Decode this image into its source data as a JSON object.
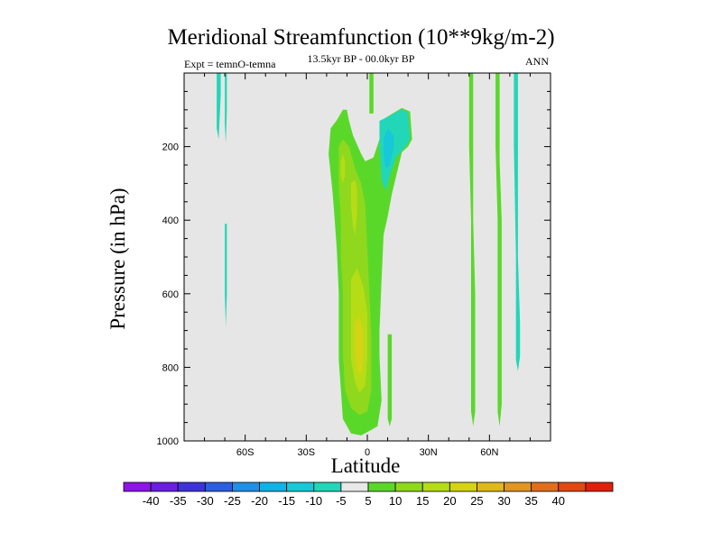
{
  "chart_data": {
    "type": "contour",
    "title": "Meridional Streamfunction (10**9kg/m-2)",
    "subtitle": "13.5kyr BP - 00.0kyr BP",
    "left_label": "Expt = temnO-temna",
    "right_label": "ANN",
    "xlabel": "Latitude",
    "ylabel": "Pressure (in hPa)",
    "xlim": [
      -90,
      90
    ],
    "ylim": [
      1000,
      0
    ],
    "x_ticks": [
      {
        "value": -60,
        "label": "60S"
      },
      {
        "value": -30,
        "label": "30S"
      },
      {
        "value": 0,
        "label": "0"
      },
      {
        "value": 30,
        "label": "30N"
      },
      {
        "value": 60,
        "label": "60N"
      }
    ],
    "y_ticks": [
      {
        "value": 200,
        "label": "200"
      },
      {
        "value": 400,
        "label": "400"
      },
      {
        "value": 600,
        "label": "600"
      },
      {
        "value": 800,
        "label": "800"
      },
      {
        "value": 1000,
        "label": "1000"
      }
    ],
    "levels": [
      -40,
      -35,
      -30,
      -25,
      -20,
      -15,
      -10,
      -5,
      5,
      10,
      15,
      20,
      25,
      30,
      35,
      40
    ],
    "level_labels": [
      "-40",
      "-35",
      "-30",
      "-25",
      "-20",
      "-15",
      "-10",
      "-5",
      "5",
      "10",
      "15",
      "20",
      "25",
      "30",
      "35",
      "40"
    ],
    "colors": [
      "#8d15e6",
      "#6a1ee0",
      "#3e33d9",
      "#2a5fe0",
      "#1f8fe8",
      "#10b3e6",
      "#16c8d8",
      "#22d6b8",
      "#e8e8e8",
      "#5ad82a",
      "#8fd81e",
      "#b6dc16",
      "#d4d414",
      "#e0b81a",
      "#e09620",
      "#e06e1c",
      "#e04a12",
      "#e0200c"
    ],
    "contour_regions": [
      {
        "class": "-5 to -10",
        "color": "#22d6b8",
        "points": [
          [
            -74,
            0
          ],
          [
            -72,
            0
          ],
          [
            -72,
            60
          ],
          [
            -73,
            180
          ],
          [
            -74,
            150
          ],
          [
            -74,
            60
          ]
        ]
      },
      {
        "class": "-5 to -10",
        "color": "#22d6b8",
        "points": [
          [
            -70,
            0
          ],
          [
            -69,
            0
          ],
          [
            -69,
            100
          ],
          [
            -69.5,
            190
          ],
          [
            -70,
            140
          ]
        ]
      },
      {
        "class": "-5 to -10",
        "color": "#22d6b8",
        "points": [
          [
            -70,
            410
          ],
          [
            -69,
            410
          ],
          [
            -69,
            600
          ],
          [
            -69.5,
            690
          ],
          [
            -70,
            600
          ]
        ]
      },
      {
        "class": "5 to 10",
        "color": "#5ad82a",
        "points": [
          [
            1,
            0
          ],
          [
            3,
            0
          ],
          [
            3,
            110
          ],
          [
            1,
            110
          ]
        ]
      },
      {
        "class": "5 to 10",
        "color": "#5ad82a",
        "points": [
          [
            -18,
            150
          ],
          [
            -15,
            128
          ],
          [
            -12,
            100
          ],
          [
            -10,
            100
          ],
          [
            -9,
            130
          ],
          [
            -7,
            170
          ],
          [
            -3,
            220
          ],
          [
            -1,
            240
          ],
          [
            3,
            230
          ],
          [
            6,
            180
          ],
          [
            7,
            130
          ],
          [
            10,
            118
          ],
          [
            17,
            95
          ],
          [
            21,
            105
          ],
          [
            22,
            180
          ],
          [
            20,
            200
          ],
          [
            17,
            215
          ],
          [
            12,
            330
          ],
          [
            10,
            390
          ],
          [
            8,
            440
          ],
          [
            7,
            560
          ],
          [
            6,
            700
          ],
          [
            6,
            770
          ],
          [
            7,
            890
          ],
          [
            5,
            960
          ],
          [
            2,
            970
          ],
          [
            -3,
            985
          ],
          [
            -8,
            980
          ],
          [
            -12,
            940
          ],
          [
            -13,
            860
          ],
          [
            -14,
            780
          ],
          [
            -14,
            600
          ],
          [
            -15,
            480
          ],
          [
            -16,
            400
          ],
          [
            -17,
            330
          ],
          [
            -19,
            220
          ]
        ]
      },
      {
        "class": "5 to 10",
        "color": "#5ad82a",
        "points": [
          [
            10,
            710
          ],
          [
            12,
            710
          ],
          [
            12,
            940
          ],
          [
            11,
            960
          ],
          [
            10,
            940
          ]
        ]
      },
      {
        "class": "5 to 10",
        "color": "#5ad82a",
        "points": [
          [
            50,
            0
          ],
          [
            52,
            0
          ],
          [
            52,
            400
          ],
          [
            53,
            600
          ],
          [
            53,
            800
          ],
          [
            53,
            920
          ],
          [
            52,
            960
          ],
          [
            51,
            920
          ],
          [
            51,
            700
          ],
          [
            51,
            400
          ],
          [
            50,
            200
          ]
        ]
      },
      {
        "class": "5 to 10",
        "color": "#5ad82a",
        "points": [
          [
            63,
            0
          ],
          [
            65,
            0
          ],
          [
            65,
            240
          ],
          [
            66,
            400
          ],
          [
            66,
            600
          ],
          [
            66,
            780
          ],
          [
            66,
            900
          ],
          [
            65,
            960
          ],
          [
            64,
            920
          ],
          [
            64,
            700
          ],
          [
            64,
            400
          ],
          [
            63,
            200
          ]
        ]
      },
      {
        "class": "-5 to -10",
        "color": "#22d6b8",
        "points": [
          [
            6,
            130
          ],
          [
            9,
            122
          ],
          [
            17,
            98
          ],
          [
            20,
            108
          ],
          [
            21,
            180
          ],
          [
            18,
            205
          ],
          [
            14,
            230
          ],
          [
            11,
            280
          ],
          [
            9,
            320
          ],
          [
            7,
            290
          ],
          [
            6,
            200
          ]
        ]
      },
      {
        "class": "-5 to -10",
        "color": "#22d6b8",
        "points": [
          [
            72,
            0
          ],
          [
            74,
            0
          ],
          [
            74,
            500
          ],
          [
            75,
            680
          ],
          [
            75,
            770
          ],
          [
            74,
            810
          ],
          [
            73,
            780
          ],
          [
            73,
            500
          ],
          [
            72,
            200
          ]
        ]
      },
      {
        "class": "-10 to -15",
        "color": "#16c8d8",
        "points": [
          [
            8,
            180
          ],
          [
            10,
            150
          ],
          [
            13,
            170
          ],
          [
            13,
            200
          ],
          [
            11,
            250
          ],
          [
            9,
            260
          ],
          [
            8,
            220
          ]
        ]
      },
      {
        "class": "10 to 15",
        "color": "#8fd81e",
        "points": [
          [
            -14,
            200
          ],
          [
            -12,
            180
          ],
          [
            -9,
            200
          ],
          [
            -6,
            260
          ],
          [
            -3,
            300
          ],
          [
            -1,
            360
          ],
          [
            0,
            480
          ],
          [
            1,
            600
          ],
          [
            2,
            720
          ],
          [
            2,
            860
          ],
          [
            0,
            920
          ],
          [
            -4,
            930
          ],
          [
            -8,
            910
          ],
          [
            -11,
            860
          ],
          [
            -12,
            760
          ],
          [
            -12,
            600
          ],
          [
            -13,
            500
          ],
          [
            -13,
            400
          ],
          [
            -14,
            300
          ]
        ]
      },
      {
        "class": "15 to 20",
        "color": "#b6dc16",
        "points": [
          [
            -13,
            240
          ],
          [
            -12,
            220
          ],
          [
            -11,
            240
          ],
          [
            -11,
            280
          ],
          [
            -12,
            300
          ],
          [
            -13,
            280
          ]
        ]
      },
      {
        "class": "15 to 20",
        "color": "#b6dc16",
        "points": [
          [
            -8,
            300
          ],
          [
            -6,
            290
          ],
          [
            -5,
            320
          ],
          [
            -5,
            380
          ],
          [
            -6,
            440
          ],
          [
            -7,
            420
          ],
          [
            -8,
            360
          ]
        ]
      },
      {
        "class": "15 to 20",
        "color": "#b6dc16",
        "points": [
          [
            -8,
            560
          ],
          [
            -5,
            530
          ],
          [
            -2,
            580
          ],
          [
            0,
            650
          ],
          [
            0,
            780
          ],
          [
            -1,
            850
          ],
          [
            -4,
            870
          ],
          [
            -6,
            840
          ],
          [
            -8,
            780
          ],
          [
            -8,
            660
          ]
        ]
      },
      {
        "class": "20 to 25",
        "color": "#d4d414",
        "points": [
          [
            -6,
            680
          ],
          [
            -4,
            660
          ],
          [
            -2,
            700
          ],
          [
            -2,
            780
          ],
          [
            -3,
            820
          ],
          [
            -5,
            810
          ],
          [
            -6,
            760
          ]
        ]
      }
    ]
  }
}
